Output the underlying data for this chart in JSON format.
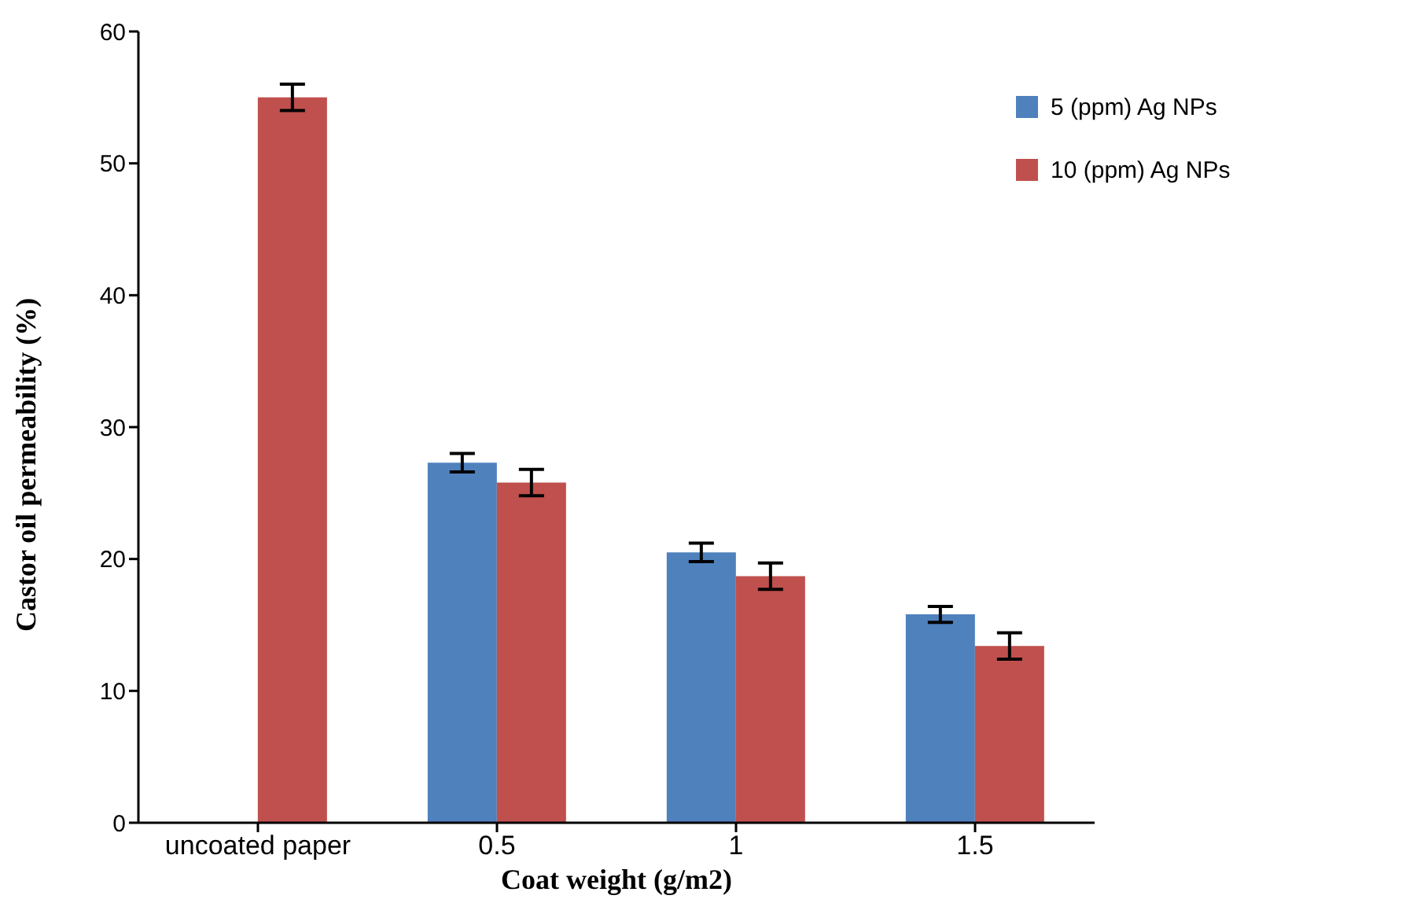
{
  "chart_data": {
    "type": "bar",
    "xlabel": "Coat weight (g/m2)",
    "ylabel": "Castor oil  permeability (%)",
    "categories": [
      "uncoated paper",
      "0.5",
      "1",
      "1.5"
    ],
    "series": [
      {
        "name": "5 (ppm) Ag NPs",
        "color": "#4f81bd",
        "values": [
          null,
          27.3,
          20.5,
          15.8
        ],
        "errors": [
          null,
          0.7,
          0.7,
          0.6
        ]
      },
      {
        "name": "10 (ppm) Ag NPs",
        "color": "#c0504d",
        "values": [
          55,
          25.8,
          18.7,
          13.4
        ],
        "errors": [
          1.0,
          1.0,
          1.0,
          1.0
        ]
      }
    ],
    "ylim": [
      0,
      60
    ],
    "yticks": [
      0,
      10,
      20,
      30,
      40,
      50,
      60
    ],
    "grid": false,
    "legend": "top right"
  }
}
